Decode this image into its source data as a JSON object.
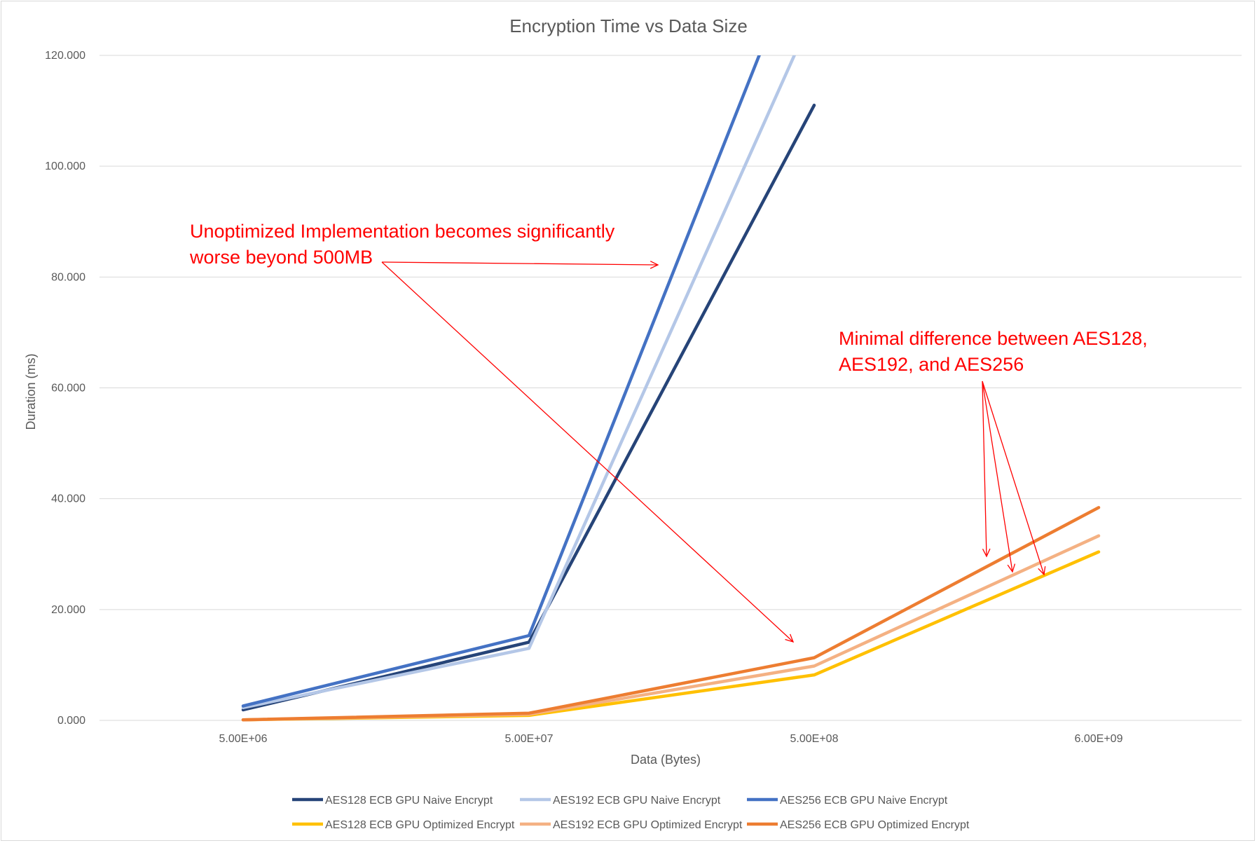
{
  "chart_data": {
    "type": "line",
    "title": "Encryption Time vs Data Size",
    "xlabel": "Data (Bytes)",
    "ylabel": "Duration (ms)",
    "categories": [
      "5.00E+06",
      "5.00E+07",
      "5.00E+08",
      "6.00E+09"
    ],
    "ylim": [
      0,
      120
    ],
    "yticks": [
      "0.000",
      "20.000",
      "40.000",
      "60.000",
      "80.000",
      "100.000",
      "120.000"
    ],
    "grid": true,
    "legend_position": "bottom",
    "series": [
      {
        "name": "AES128 ECB GPU Naive Encrypt",
        "color": "#264478",
        "values": [
          1.9,
          14.1,
          111.0,
          null
        ],
        "clipped_above_max": true
      },
      {
        "name": "AES192 ECB GPU Naive Encrypt",
        "color": "#b4c7e7",
        "values": [
          2.3,
          13.0,
          128.0,
          null
        ],
        "clipped_above_max": true
      },
      {
        "name": "AES256 ECB GPU Naive Encrypt",
        "color": "#4472c4",
        "values": [
          2.6,
          15.3,
          145.0,
          null
        ],
        "clipped_above_max": true
      },
      {
        "name": "AES128 ECB GPU Optimized Encrypt",
        "color": "#ffc000",
        "values": [
          0.1,
          0.9,
          8.2,
          30.4
        ]
      },
      {
        "name": "AES192 ECB GPU Optimized Encrypt",
        "color": "#f4b183",
        "values": [
          0.1,
          1.1,
          9.8,
          33.3
        ]
      },
      {
        "name": "AES256 ECB GPU Optimized Encrypt",
        "color": "#ed7d31",
        "values": [
          0.1,
          1.3,
          11.3,
          38.4
        ]
      }
    ],
    "annotations": [
      {
        "lines": [
          "Unoptimized Implementation becomes significantly",
          "worse beyond 500MB"
        ],
        "color": "#ff0000",
        "targets": [
          "AES256 ECB GPU Naive Encrypt",
          "AES256 ECB GPU Optimized Encrypt"
        ]
      },
      {
        "lines": [
          "Minimal difference between AES128,",
          "AES192, and AES256"
        ],
        "color": "#ff0000",
        "targets": [
          "AES256 ECB GPU Optimized Encrypt",
          "AES192 ECB GPU Optimized Encrypt",
          "AES128 ECB GPU Optimized Encrypt"
        ]
      }
    ]
  }
}
